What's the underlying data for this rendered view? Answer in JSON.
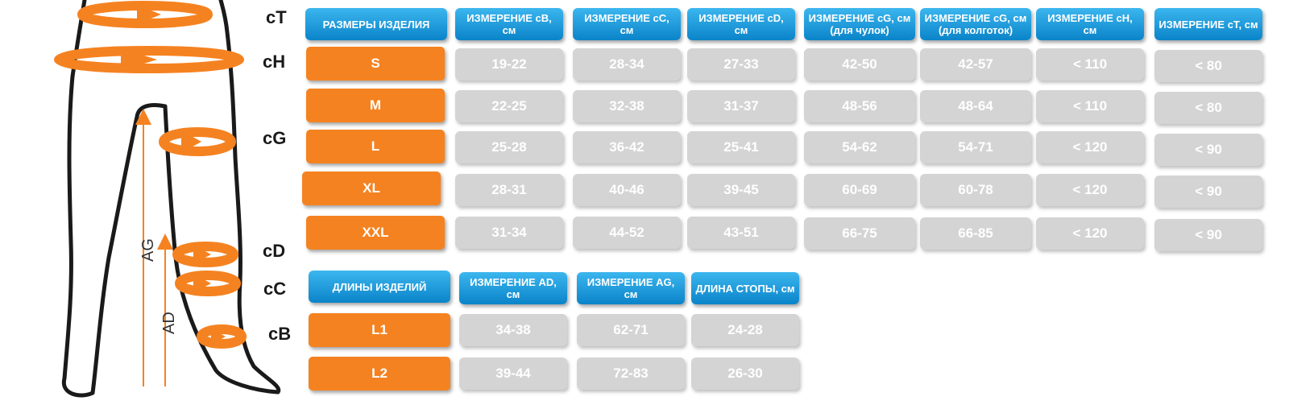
{
  "measure_labels": [
    "cT",
    "cH",
    "cG",
    "cD",
    "cC",
    "cB"
  ],
  "axis_labels": {
    "ag": "AG",
    "ad": "AD"
  },
  "colors": {
    "header": "#1a9ad9",
    "size_cell": "#f58220",
    "value_cell": "#d4d4d4",
    "arrow": "#f58220"
  },
  "sizes_table": {
    "headers": [
      "РАЗМЕРЫ ИЗДЕЛИЯ",
      "ИЗМЕРЕНИЕ сВ, см",
      "ИЗМЕРЕНИЕ сС, см",
      "ИЗМЕРЕНИЕ сD, см",
      "ИЗМЕРЕНИЕ сG, см (для чулок)",
      "ИЗМЕРЕНИЕ сG, см (для колготок)",
      "ИЗМЕРЕНИЕ сН, см",
      "ИЗМЕРЕНИЕ сТ, см"
    ],
    "rows": [
      {
        "size": "S",
        "values": [
          "19-22",
          "28-34",
          "27-33",
          "42-50",
          "42-57",
          "< 110",
          "< 80"
        ]
      },
      {
        "size": "M",
        "values": [
          "22-25",
          "32-38",
          "31-37",
          "48-56",
          "48-64",
          "< 110",
          "< 80"
        ]
      },
      {
        "size": "L",
        "values": [
          "25-28",
          "36-42",
          "25-41",
          "54-62",
          "54-71",
          "< 120",
          "< 90"
        ]
      },
      {
        "size": "XL",
        "values": [
          "28-31",
          "40-46",
          "39-45",
          "60-69",
          "60-78",
          "< 120",
          "< 90"
        ]
      },
      {
        "size": "XXL",
        "values": [
          "31-34",
          "44-52",
          "43-51",
          "66-75",
          "66-85",
          "< 120",
          "< 90"
        ]
      }
    ]
  },
  "lengths_table": {
    "headers": [
      "ДЛИНЫ ИЗДЕЛИЙ",
      "ИЗМЕРЕНИЕ AD, см",
      "ИЗМЕРЕНИЕ AG, см",
      "ДЛИНА СТОПЫ, см"
    ],
    "rows": [
      {
        "size": "L1",
        "values": [
          "34-38",
          "62-71",
          "24-28"
        ]
      },
      {
        "size": "L2",
        "values": [
          "39-44",
          "72-83",
          "26-30"
        ]
      }
    ]
  }
}
